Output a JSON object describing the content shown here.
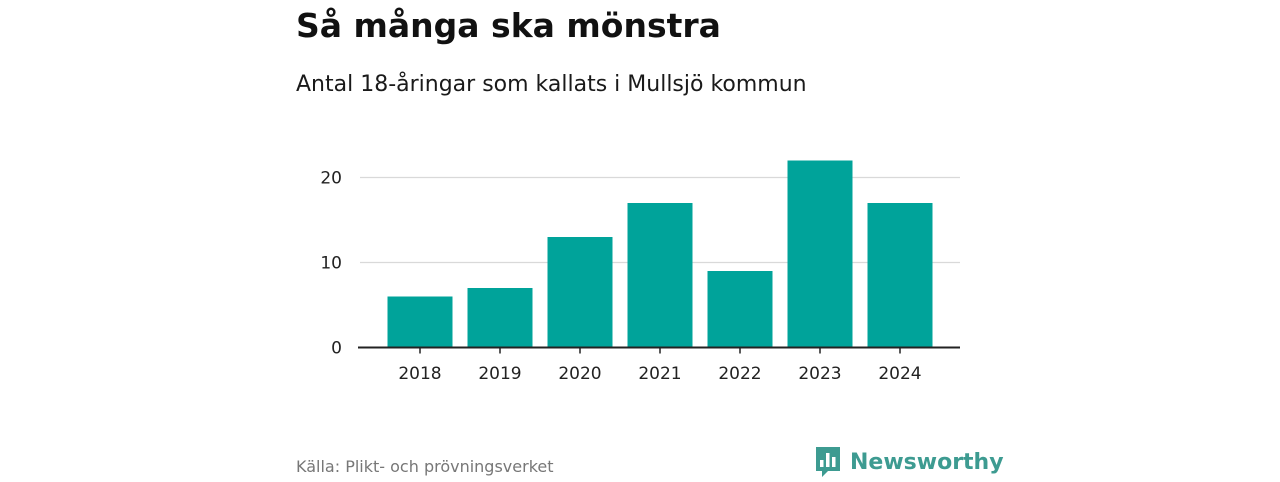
{
  "title": "Så många ska mönstra",
  "subtitle": "Antal 18-åringar som kallats i Mullsjö kommun",
  "source": "Källa: Plikt- och prövningsverket",
  "brand": {
    "name": "Newsworthy",
    "icon": "newsworthy-logo-icon",
    "color": "#3d9b91"
  },
  "colors": {
    "bar": "#00a39a",
    "gridline": "#d9d9d9",
    "axis": "#222222"
  },
  "chart_data": {
    "type": "bar",
    "categories": [
      "2018",
      "2019",
      "2020",
      "2021",
      "2022",
      "2023",
      "2024"
    ],
    "values": [
      6,
      7,
      13,
      17,
      9,
      22,
      17
    ],
    "yticks": [
      0,
      10,
      20
    ],
    "ylim": [
      0,
      24
    ],
    "grid": true,
    "legend": "none"
  }
}
